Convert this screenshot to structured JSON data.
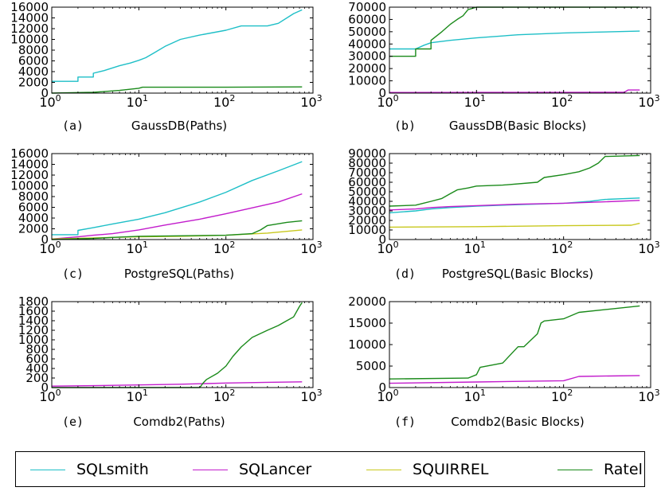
{
  "colors": {
    "SQLsmith": "#1ebfc7",
    "SQLancer": "#c21ccc",
    "SQUIRREL": "#c8c81e",
    "Ratel": "#1a8a1a"
  },
  "legend": {
    "items": [
      {
        "name": "SQLsmith",
        "color": "#1ebfc7"
      },
      {
        "name": "SQLancer",
        "color": "#c21ccc"
      },
      {
        "name": "SQUIRREL",
        "color": "#c8c81e"
      },
      {
        "name": "Ratel",
        "color": "#1a8a1a"
      }
    ]
  },
  "chart_data": [
    {
      "type": "line",
      "letter": "(a)",
      "title": "GaussDB(Paths)",
      "xscale": "log",
      "xlim": [
        1,
        1000
      ],
      "ylim": [
        0,
        16000
      ],
      "x_ticks": [
        {
          "base": "10",
          "exp": "0"
        },
        {
          "base": "10",
          "exp": "1"
        },
        {
          "base": "10",
          "exp": "2"
        },
        {
          "base": "10",
          "exp": "3"
        }
      ],
      "y_ticks": [
        "0",
        "2000",
        "4000",
        "6000",
        "8000",
        "10000",
        "12000",
        "14000",
        "16000"
      ],
      "y_tick_values": [
        0,
        2000,
        4000,
        6000,
        8000,
        10000,
        12000,
        14000,
        16000
      ],
      "series": [
        {
          "name": "SQLsmith",
          "x": [
            1,
            2,
            2,
            3,
            3,
            4,
            5,
            6,
            8,
            10,
            12,
            15,
            20,
            30,
            50,
            100,
            150,
            300,
            400,
            600,
            750
          ],
          "y": [
            2200,
            2200,
            3000,
            3000,
            3700,
            4200,
            4700,
            5100,
            5600,
            6100,
            6600,
            7500,
            8700,
            10000,
            10800,
            11700,
            12500,
            12500,
            13000,
            14800,
            15500
          ]
        },
        {
          "name": "Ratel",
          "x": [
            1,
            3,
            6,
            10,
            11,
            30,
            100,
            750
          ],
          "y": [
            0,
            150,
            500,
            900,
            1100,
            1100,
            1100,
            1150
          ]
        }
      ]
    },
    {
      "type": "line",
      "letter": "(b)",
      "title": "GaussDB(Basic Blocks)",
      "xscale": "log",
      "xlim": [
        1,
        1000
      ],
      "ylim": [
        0,
        70000
      ],
      "x_ticks": [
        {
          "base": "10",
          "exp": "0"
        },
        {
          "base": "10",
          "exp": "1"
        },
        {
          "base": "10",
          "exp": "2"
        },
        {
          "base": "10",
          "exp": "3"
        }
      ],
      "y_ticks": [
        "0",
        "10000",
        "20000",
        "30000",
        "40000",
        "50000",
        "60000",
        "70000"
      ],
      "y_tick_values": [
        0,
        10000,
        20000,
        30000,
        40000,
        50000,
        60000,
        70000
      ],
      "series": [
        {
          "name": "SQLsmith",
          "x": [
            1,
            2,
            2.5,
            3,
            5,
            10,
            30,
            100,
            200,
            750
          ],
          "y": [
            36000,
            36000,
            39000,
            41000,
            43000,
            45000,
            47500,
            49000,
            49500,
            50500
          ]
        },
        {
          "name": "SQLancer",
          "x": [
            1,
            100,
            500,
            550,
            750
          ],
          "y": [
            500,
            600,
            700,
            2500,
            2500
          ]
        },
        {
          "name": "Ratel",
          "x": [
            1,
            2,
            2,
            3,
            3,
            4,
            5,
            6,
            7,
            8,
            10,
            750
          ],
          "y": [
            30000,
            30000,
            36000,
            36000,
            43000,
            50000,
            56000,
            60000,
            63000,
            68000,
            70000,
            70000
          ]
        }
      ]
    },
    {
      "type": "line",
      "letter": "(c)",
      "title": "PostgreSQL(Paths)",
      "xscale": "log",
      "xlim": [
        1,
        1000
      ],
      "ylim": [
        0,
        16000
      ],
      "x_ticks": [
        {
          "base": "10",
          "exp": "0"
        },
        {
          "base": "10",
          "exp": "1"
        },
        {
          "base": "10",
          "exp": "2"
        },
        {
          "base": "10",
          "exp": "3"
        }
      ],
      "y_ticks": [
        "0",
        "2000",
        "4000",
        "6000",
        "8000",
        "10000",
        "12000",
        "14000",
        "16000"
      ],
      "y_tick_values": [
        0,
        2000,
        4000,
        6000,
        8000,
        10000,
        12000,
        14000,
        16000
      ],
      "series": [
        {
          "name": "SQLsmith",
          "x": [
            1,
            2,
            2,
            3,
            5,
            10,
            20,
            50,
            100,
            200,
            400,
            750
          ],
          "y": [
            900,
            900,
            1700,
            2200,
            2900,
            3800,
            5000,
            7000,
            8800,
            11000,
            12800,
            14500
          ]
        },
        {
          "name": "SQLancer",
          "x": [
            1,
            2,
            3,
            5,
            10,
            20,
            50,
            100,
            200,
            400,
            750
          ],
          "y": [
            100,
            500,
            800,
            1100,
            1800,
            2700,
            3800,
            4800,
            5900,
            7000,
            8500
          ]
        },
        {
          "name": "SQUIRREL",
          "x": [
            1,
            5,
            10,
            30,
            100,
            300,
            750
          ],
          "y": [
            100,
            400,
            500,
            600,
            800,
            1200,
            1800
          ]
        },
        {
          "name": "Ratel",
          "x": [
            1,
            3,
            5,
            10,
            30,
            100,
            200,
            250,
            300,
            500,
            750
          ],
          "y": [
            0,
            200,
            400,
            600,
            700,
            800,
            1100,
            1800,
            2600,
            3200,
            3500
          ]
        }
      ]
    },
    {
      "type": "line",
      "letter": "(d)",
      "title": "PostgreSQL(Basic Blocks)",
      "xscale": "log",
      "xlim": [
        1,
        1000
      ],
      "ylim": [
        0,
        90000
      ],
      "x_ticks": [
        {
          "base": "10",
          "exp": "0"
        },
        {
          "base": "10",
          "exp": "1"
        },
        {
          "base": "10",
          "exp": "2"
        },
        {
          "base": "10",
          "exp": "3"
        }
      ],
      "y_ticks": [
        "0",
        "10000",
        "20000",
        "30000",
        "40000",
        "50000",
        "60000",
        "70000",
        "80000",
        "90000"
      ],
      "y_tick_values": [
        0,
        10000,
        20000,
        30000,
        40000,
        50000,
        60000,
        70000,
        80000,
        90000
      ],
      "series": [
        {
          "name": "SQLsmith",
          "x": [
            1,
            2,
            3,
            5,
            10,
            30,
            100,
            200,
            300,
            750
          ],
          "y": [
            28000,
            30000,
            32000,
            33500,
            35000,
            36500,
            38000,
            40000,
            42000,
            43500
          ]
        },
        {
          "name": "SQLancer",
          "x": [
            1,
            2,
            3,
            5,
            10,
            30,
            100,
            300,
            750
          ],
          "y": [
            31000,
            32000,
            33500,
            34500,
            35500,
            37000,
            38000,
            39500,
            41000
          ]
        },
        {
          "name": "SQUIRREL",
          "x": [
            1,
            10,
            100,
            600,
            750
          ],
          "y": [
            13000,
            13500,
            14500,
            15000,
            17000
          ]
        },
        {
          "name": "Ratel",
          "x": [
            1,
            2,
            3,
            4,
            5,
            6,
            8,
            10,
            20,
            50,
            60,
            100,
            150,
            200,
            250,
            300,
            750
          ],
          "y": [
            35000,
            36000,
            40000,
            43000,
            48000,
            52000,
            54000,
            56000,
            57000,
            60000,
            65000,
            68000,
            71000,
            75000,
            80000,
            87000,
            88000
          ]
        }
      ]
    },
    {
      "type": "line",
      "letter": "(e)",
      "title": "Comdb2(Paths)",
      "xscale": "log",
      "xlim": [
        1,
        1000
      ],
      "ylim": [
        0,
        1800
      ],
      "x_ticks": [
        {
          "base": "10",
          "exp": "0"
        },
        {
          "base": "10",
          "exp": "1"
        },
        {
          "base": "10",
          "exp": "2"
        },
        {
          "base": "10",
          "exp": "3"
        }
      ],
      "y_ticks": [
        "0",
        "200",
        "400",
        "600",
        "800",
        "1000",
        "1200",
        "1400",
        "1600",
        "1800"
      ],
      "y_tick_values": [
        0,
        200,
        400,
        600,
        800,
        1000,
        1200,
        1400,
        1600,
        1800
      ],
      "series": [
        {
          "name": "SQLancer",
          "x": [
            1,
            3,
            10,
            30,
            50,
            100,
            300,
            750
          ],
          "y": [
            30,
            40,
            55,
            70,
            80,
            95,
            110,
            120
          ]
        },
        {
          "name": "Ratel",
          "x": [
            1,
            10,
            50,
            55,
            60,
            80,
            100,
            120,
            150,
            200,
            300,
            400,
            500,
            600,
            700,
            750
          ],
          "y": [
            0,
            0,
            0,
            100,
            170,
            300,
            450,
            650,
            850,
            1050,
            1200,
            1300,
            1400,
            1480,
            1700,
            1780
          ]
        }
      ]
    },
    {
      "type": "line",
      "letter": "(f)",
      "title": "Comdb2(Basic Blocks)",
      "xscale": "log",
      "xlim": [
        1,
        1000
      ],
      "ylim": [
        0,
        20000
      ],
      "x_ticks": [
        {
          "base": "10",
          "exp": "0"
        },
        {
          "base": "10",
          "exp": "1"
        },
        {
          "base": "10",
          "exp": "2"
        },
        {
          "base": "10",
          "exp": "3"
        }
      ],
      "y_ticks": [
        "0",
        "5000",
        "10000",
        "15000",
        "20000"
      ],
      "y_tick_values": [
        0,
        5000,
        10000,
        15000,
        20000
      ],
      "series": [
        {
          "name": "SQLancer",
          "x": [
            1,
            10,
            100,
            150,
            750
          ],
          "y": [
            1000,
            1300,
            1600,
            2600,
            2800
          ]
        },
        {
          "name": "Ratel",
          "x": [
            1,
            8,
            10,
            11,
            20,
            30,
            35,
            50,
            55,
            60,
            100,
            150,
            750
          ],
          "y": [
            2000,
            2200,
            3000,
            4700,
            5700,
            9500,
            9500,
            12500,
            15000,
            15500,
            16000,
            17500,
            19000
          ]
        }
      ]
    }
  ]
}
